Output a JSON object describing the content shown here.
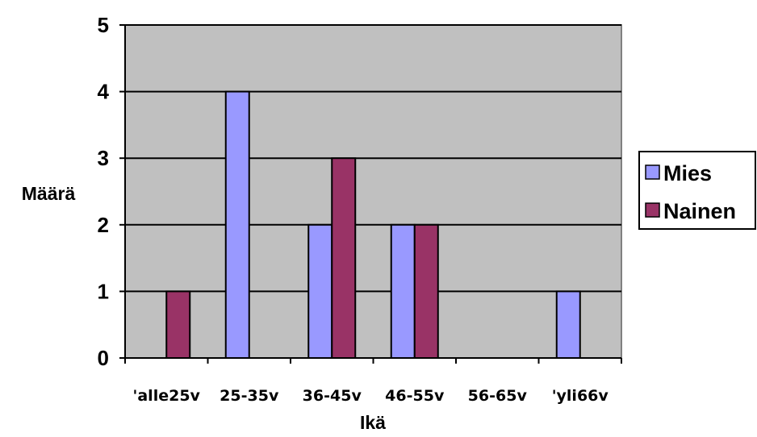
{
  "chart_data": {
    "type": "bar",
    "categories": [
      "'alle25v",
      "25-35v",
      "36-45v",
      "46-55v",
      "56-65v",
      "'yli66v"
    ],
    "series": [
      {
        "name": "Mies",
        "values": [
          0,
          4,
          2,
          2,
          0,
          1
        ],
        "color": "#9999ff"
      },
      {
        "name": "Nainen",
        "values": [
          1,
          0,
          3,
          2,
          0,
          0
        ],
        "color": "#993366"
      }
    ],
    "title": "",
    "xlabel": "Ikä",
    "ylabel": "Määrä",
    "ylim": [
      0,
      5
    ],
    "yticks": [
      "0",
      "1",
      "2",
      "3",
      "4",
      "5"
    ],
    "grid": true,
    "plot_background": "#c0c0c0",
    "legend_position": "right"
  }
}
